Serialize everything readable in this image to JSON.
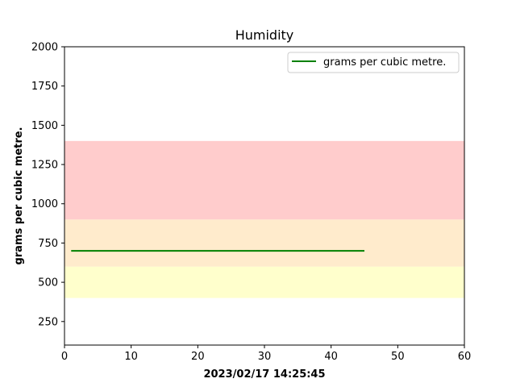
{
  "chart_data": {
    "type": "line",
    "title": "Humidity",
    "xlabel": "2023/02/17 14:25:45",
    "ylabel": "grams per cubic metre.",
    "xlim": [
      0,
      60
    ],
    "ylim": [
      100,
      2000
    ],
    "xticks": [
      "0",
      "10",
      "20",
      "30",
      "40",
      "50",
      "60"
    ],
    "yticks": [
      "250",
      "500",
      "750",
      "1000",
      "1250",
      "1500",
      "1750",
      "2000"
    ],
    "grid": false,
    "legend_position": "top-right",
    "bands": [
      {
        "from": 400,
        "to": 600,
        "color": "#ffffcc"
      },
      {
        "from": 600,
        "to": 900,
        "color": "#ffebcc"
      },
      {
        "from": 900,
        "to": 1400,
        "color": "#ffcccc"
      }
    ],
    "series": [
      {
        "name": "grams per cubic metre.",
        "color": "#008000",
        "x": [
          1,
          45
        ],
        "y": [
          700,
          700
        ]
      }
    ]
  }
}
